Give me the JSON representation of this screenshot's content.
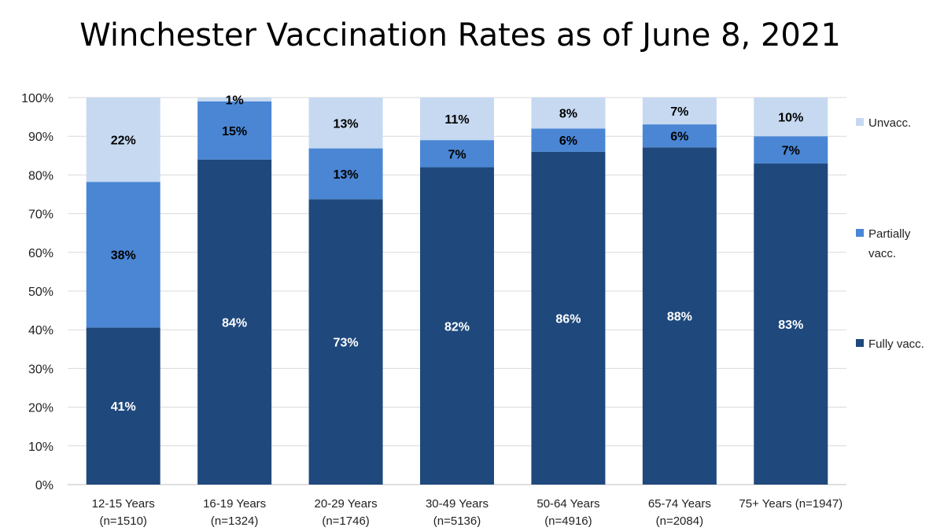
{
  "chart_data": {
    "type": "bar",
    "stacked": true,
    "percent_stacked": true,
    "title": "Winchester Vaccination Rates as of June 8, 2021",
    "categories": [
      [
        "12-15 Years",
        "(n=1510)"
      ],
      [
        "16-19 Years",
        "(n=1324)"
      ],
      [
        "20-29 Years",
        "(n=1746)"
      ],
      [
        "30-49 Years",
        "(n=5136)"
      ],
      [
        "50-64 Years",
        "(n=4916)"
      ],
      [
        "65-74 Years",
        "(n=2084)"
      ],
      [
        "75+ Years (n=1947)",
        ""
      ]
    ],
    "series": [
      {
        "name": "Fully vacc.",
        "color": "#1f497d",
        "label_color": "#ffffff",
        "values": [
          41,
          84,
          73,
          82,
          86,
          88,
          83
        ],
        "labels": [
          "41%",
          "84%",
          "73%",
          "82%",
          "86%",
          "88%",
          "83%"
        ]
      },
      {
        "name": "Partially vacc.",
        "color": "#4a86d4",
        "label_color": "#000000",
        "values": [
          38,
          15,
          13,
          7,
          6,
          6,
          7
        ],
        "labels": [
          "38%",
          "15%",
          "13%",
          "7%",
          "6%",
          "6%",
          "7%"
        ]
      },
      {
        "name": "Unvacc.",
        "color": "#c6d9f1",
        "label_color": "#000000",
        "values": [
          22,
          1,
          13,
          11,
          8,
          7,
          10
        ],
        "labels": [
          "22%",
          "1%",
          "13%",
          "11%",
          "8%",
          "7%",
          "10%"
        ]
      }
    ],
    "legend_order": [
      "Unvacc.",
      "Partially vacc.",
      "Fully vacc."
    ],
    "legend_labels": [
      [
        "Unvacc."
      ],
      [
        "Partially",
        "vacc."
      ],
      [
        "Fully vacc."
      ]
    ],
    "ylim": [
      0,
      100
    ],
    "yticks": [
      0,
      10,
      20,
      30,
      40,
      50,
      60,
      70,
      80,
      90,
      100
    ],
    "ytick_labels": [
      "0%",
      "10%",
      "20%",
      "30%",
      "40%",
      "50%",
      "60%",
      "70%",
      "80%",
      "90%",
      "100%"
    ],
    "grid": true,
    "legend_position": "right"
  }
}
